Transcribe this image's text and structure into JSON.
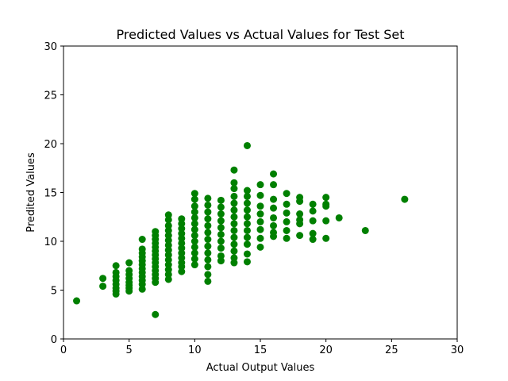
{
  "chart_data": {
    "type": "scatter",
    "title": "Predicted Values vs Actual Values for Test Set",
    "xlabel": "Actual Output Values",
    "ylabel": "Predited Values",
    "xlim": [
      0,
      30
    ],
    "ylim": [
      0,
      30
    ],
    "xticks": [
      0,
      5,
      10,
      15,
      20,
      25,
      30
    ],
    "yticks": [
      0,
      5,
      10,
      15,
      20,
      25,
      30
    ],
    "grid": false,
    "point_color": "#008000",
    "points": [
      [
        1,
        3.9
      ],
      [
        3,
        6.2
      ],
      [
        3,
        5.4
      ],
      [
        4,
        7.5
      ],
      [
        4,
        6.8
      ],
      [
        4,
        6.4
      ],
      [
        4,
        6.0
      ],
      [
        4,
        5.6
      ],
      [
        4,
        5.2
      ],
      [
        4,
        4.9
      ],
      [
        4,
        4.6
      ],
      [
        5,
        7.8
      ],
      [
        5,
        7.0
      ],
      [
        5,
        6.6
      ],
      [
        5,
        6.2
      ],
      [
        5,
        5.8
      ],
      [
        5,
        5.5
      ],
      [
        5,
        5.2
      ],
      [
        5,
        4.9
      ],
      [
        6,
        10.2
      ],
      [
        6,
        9.2
      ],
      [
        6,
        8.8
      ],
      [
        6,
        8.4
      ],
      [
        6,
        8.0
      ],
      [
        6,
        7.6
      ],
      [
        6,
        7.2
      ],
      [
        6,
        6.8
      ],
      [
        6,
        6.4
      ],
      [
        6,
        6.0
      ],
      [
        6,
        5.6
      ],
      [
        6,
        5.1
      ],
      [
        7,
        11.0
      ],
      [
        7,
        10.6
      ],
      [
        7,
        10.2
      ],
      [
        7,
        9.8
      ],
      [
        7,
        9.4
      ],
      [
        7,
        9.0
      ],
      [
        7,
        8.6
      ],
      [
        7,
        8.2
      ],
      [
        7,
        7.8
      ],
      [
        7,
        7.4
      ],
      [
        7,
        7.0
      ],
      [
        7,
        6.6
      ],
      [
        7,
        6.2
      ],
      [
        7,
        5.8
      ],
      [
        7,
        2.5
      ],
      [
        8,
        12.7
      ],
      [
        8,
        12.2
      ],
      [
        8,
        11.6
      ],
      [
        8,
        11.1
      ],
      [
        8,
        10.6
      ],
      [
        8,
        10.1
      ],
      [
        8,
        9.6
      ],
      [
        8,
        9.1
      ],
      [
        8,
        8.6
      ],
      [
        8,
        8.1
      ],
      [
        8,
        7.6
      ],
      [
        8,
        7.1
      ],
      [
        8,
        6.6
      ],
      [
        8,
        6.1
      ],
      [
        9,
        12.3
      ],
      [
        9,
        11.8
      ],
      [
        9,
        11.3
      ],
      [
        9,
        10.8
      ],
      [
        9,
        10.3
      ],
      [
        9,
        9.8
      ],
      [
        9,
        9.3
      ],
      [
        9,
        8.8
      ],
      [
        9,
        8.3
      ],
      [
        9,
        7.8
      ],
      [
        9,
        7.4
      ],
      [
        9,
        6.9
      ],
      [
        10,
        14.9
      ],
      [
        10,
        14.3
      ],
      [
        10,
        13.6
      ],
      [
        10,
        13.0
      ],
      [
        10,
        12.4
      ],
      [
        10,
        11.8
      ],
      [
        10,
        11.2
      ],
      [
        10,
        10.6
      ],
      [
        10,
        10.0
      ],
      [
        10,
        9.4
      ],
      [
        10,
        8.8
      ],
      [
        10,
        8.2
      ],
      [
        10,
        7.6
      ],
      [
        11,
        14.4
      ],
      [
        11,
        13.7
      ],
      [
        11,
        13.0
      ],
      [
        11,
        12.3
      ],
      [
        11,
        11.6
      ],
      [
        11,
        10.9
      ],
      [
        11,
        10.2
      ],
      [
        11,
        9.5
      ],
      [
        11,
        8.8
      ],
      [
        11,
        8.1
      ],
      [
        11,
        7.4
      ],
      [
        11,
        6.6
      ],
      [
        11,
        5.9
      ],
      [
        12,
        14.2
      ],
      [
        12,
        13.5
      ],
      [
        12,
        12.8
      ],
      [
        12,
        12.1
      ],
      [
        12,
        11.4
      ],
      [
        12,
        10.7
      ],
      [
        12,
        10.0
      ],
      [
        12,
        9.3
      ],
      [
        12,
        8.5
      ],
      [
        12,
        8.0
      ],
      [
        13,
        17.3
      ],
      [
        13,
        16.0
      ],
      [
        13,
        15.4
      ],
      [
        13,
        14.6
      ],
      [
        13,
        13.9
      ],
      [
        13,
        13.2
      ],
      [
        13,
        12.5
      ],
      [
        13,
        11.8
      ],
      [
        13,
        11.1
      ],
      [
        13,
        10.4
      ],
      [
        13,
        9.7
      ],
      [
        13,
        9.0
      ],
      [
        13,
        8.3
      ],
      [
        13,
        7.8
      ],
      [
        14,
        19.8
      ],
      [
        14,
        15.2
      ],
      [
        14,
        14.6
      ],
      [
        14,
        13.9
      ],
      [
        14,
        13.2
      ],
      [
        14,
        12.5
      ],
      [
        14,
        11.8
      ],
      [
        14,
        11.1
      ],
      [
        14,
        10.4
      ],
      [
        14,
        9.7
      ],
      [
        14,
        8.7
      ],
      [
        14,
        7.9
      ],
      [
        15,
        15.8
      ],
      [
        15,
        14.7
      ],
      [
        15,
        13.6
      ],
      [
        15,
        12.8
      ],
      [
        15,
        12.0
      ],
      [
        15,
        11.2
      ],
      [
        15,
        10.3
      ],
      [
        15,
        9.4
      ],
      [
        16,
        16.9
      ],
      [
        16,
        15.8
      ],
      [
        16,
        14.3
      ],
      [
        16,
        13.4
      ],
      [
        16,
        12.4
      ],
      [
        16,
        11.6
      ],
      [
        16,
        10.9
      ],
      [
        16,
        10.5
      ],
      [
        17,
        14.9
      ],
      [
        17,
        13.8
      ],
      [
        17,
        12.9
      ],
      [
        17,
        12.0
      ],
      [
        17,
        11.1
      ],
      [
        17,
        10.3
      ],
      [
        18,
        14.5
      ],
      [
        18,
        14.1
      ],
      [
        18,
        12.8
      ],
      [
        18,
        12.2
      ],
      [
        18,
        11.8
      ],
      [
        18,
        10.6
      ],
      [
        19,
        13.8
      ],
      [
        19,
        13.1
      ],
      [
        19,
        12.1
      ],
      [
        19,
        10.8
      ],
      [
        19,
        10.2
      ],
      [
        20,
        14.5
      ],
      [
        20,
        13.8
      ],
      [
        20,
        13.6
      ],
      [
        20,
        12.1
      ],
      [
        20,
        10.3
      ],
      [
        21,
        12.4
      ],
      [
        23,
        11.1
      ],
      [
        26,
        14.3
      ]
    ]
  }
}
